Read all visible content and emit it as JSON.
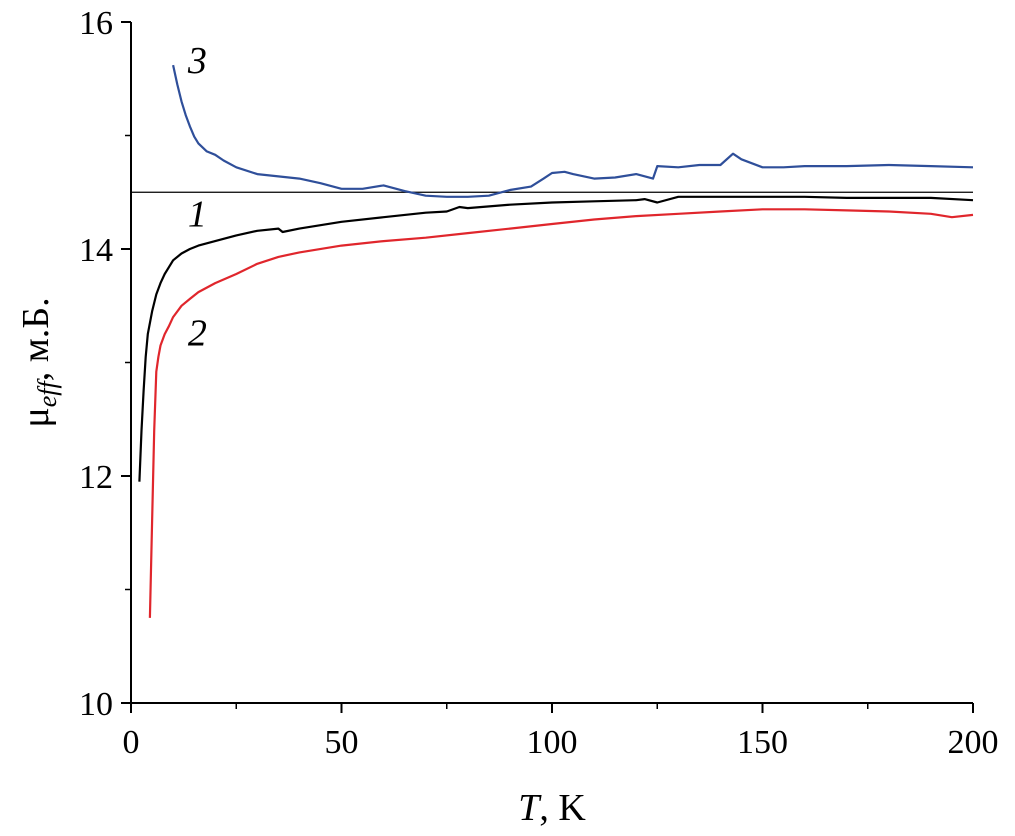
{
  "chart_data": {
    "type": "line",
    "xlabel": {
      "var": "T",
      "unit": ", K"
    },
    "ylabel": {
      "mu": "μ",
      "sub": "eff",
      "unit": ", м.Б."
    },
    "xlim": [
      0,
      200
    ],
    "ylim": [
      10,
      16
    ],
    "xticks": [
      0,
      50,
      100,
      150,
      200
    ],
    "yticks": [
      10,
      12,
      14,
      16
    ],
    "x_minor_step": 25,
    "y_minor_step": 1,
    "grid": false,
    "reference_line": {
      "y": 14.5,
      "color": "#000000"
    },
    "series": [
      {
        "name": "1",
        "color": "#000000",
        "x": [
          2,
          2.5,
          3,
          3.5,
          4,
          5,
          6,
          7,
          8,
          9,
          10,
          12,
          14,
          16,
          20,
          25,
          30,
          35,
          36,
          40,
          50,
          60,
          70,
          75,
          78,
          80,
          90,
          100,
          110,
          120,
          122,
          125,
          130,
          140,
          150,
          160,
          170,
          180,
          190,
          200
        ],
        "y": [
          11.95,
          12.4,
          12.75,
          13.05,
          13.25,
          13.45,
          13.6,
          13.7,
          13.78,
          13.84,
          13.9,
          13.96,
          14.0,
          14.03,
          14.07,
          14.12,
          14.16,
          14.18,
          14.15,
          14.18,
          14.24,
          14.28,
          14.32,
          14.33,
          14.37,
          14.36,
          14.39,
          14.41,
          14.42,
          14.43,
          14.44,
          14.41,
          14.46,
          14.46,
          14.46,
          14.46,
          14.45,
          14.45,
          14.45,
          14.43
        ]
      },
      {
        "name": "2",
        "color": "#e0262c",
        "x": [
          4.5,
          5,
          5.5,
          6,
          6.5,
          7,
          8,
          9,
          10,
          12,
          14,
          16,
          20,
          25,
          30,
          35,
          40,
          50,
          60,
          70,
          80,
          90,
          100,
          110,
          120,
          130,
          140,
          150,
          160,
          170,
          180,
          190,
          195,
          200
        ],
        "y": [
          10.75,
          11.6,
          12.4,
          12.92,
          13.05,
          13.15,
          13.25,
          13.32,
          13.4,
          13.5,
          13.56,
          13.62,
          13.7,
          13.78,
          13.87,
          13.93,
          13.97,
          14.03,
          14.07,
          14.1,
          14.14,
          14.18,
          14.22,
          14.26,
          14.29,
          14.31,
          14.33,
          14.35,
          14.35,
          14.34,
          14.33,
          14.31,
          14.28,
          14.3
        ]
      },
      {
        "name": "3",
        "color": "#2f4f9a",
        "x": [
          10,
          11,
          12,
          13,
          14,
          15,
          16,
          18,
          20,
          22,
          25,
          30,
          35,
          40,
          45,
          50,
          55,
          60,
          65,
          70,
          75,
          80,
          85,
          90,
          95,
          98,
          100,
          103,
          105,
          110,
          115,
          120,
          124,
          125,
          130,
          135,
          140,
          143,
          145,
          150,
          155,
          160,
          170,
          180,
          190,
          200
        ],
        "y": [
          15.62,
          15.45,
          15.3,
          15.18,
          15.08,
          14.99,
          14.93,
          14.86,
          14.83,
          14.78,
          14.72,
          14.66,
          14.64,
          14.62,
          14.58,
          14.53,
          14.53,
          14.56,
          14.51,
          14.47,
          14.46,
          14.46,
          14.47,
          14.52,
          14.55,
          14.62,
          14.67,
          14.68,
          14.66,
          14.62,
          14.63,
          14.66,
          14.62,
          14.73,
          14.72,
          14.74,
          14.74,
          14.84,
          14.79,
          14.72,
          14.72,
          14.73,
          14.73,
          14.74,
          14.73,
          14.72
        ]
      }
    ],
    "curve_labels": [
      {
        "text": "1",
        "x": 13.5,
        "y": 14.2
      },
      {
        "text": "2",
        "x": 13.5,
        "y": 13.15
      },
      {
        "text": "3",
        "x": 13.5,
        "y": 15.55
      }
    ]
  }
}
